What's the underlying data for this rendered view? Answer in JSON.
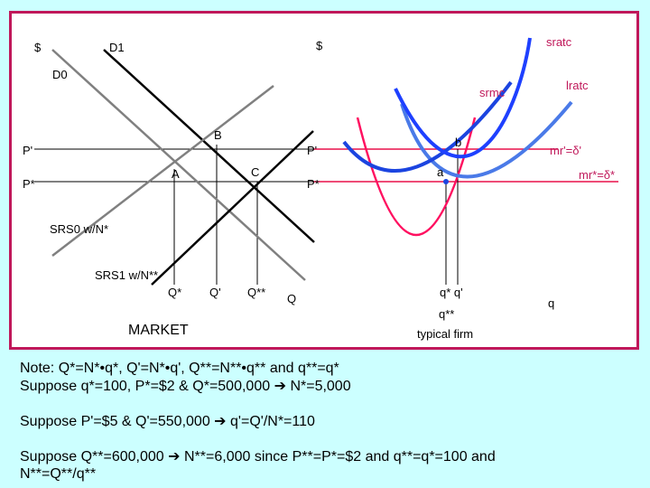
{
  "diagram": {
    "market": {
      "title": "MARKET",
      "y_axis_label": "$",
      "demand_labels": [
        "D1",
        "D0"
      ],
      "supply_labels": [
        "SRS0 w/N*",
        "SRS1 w/N**"
      ],
      "price_labels": [
        "P'",
        "P*"
      ],
      "point_labels": [
        "A",
        "B",
        "C"
      ],
      "quantity_labels": [
        "Q*",
        "Q'",
        "Q**",
        "Q"
      ]
    },
    "firm": {
      "title": "typical firm",
      "y_axis_label": "$",
      "curve_labels": [
        "sratc",
        "lratc",
        "srmc"
      ],
      "price_labels": [
        "P'",
        "P*"
      ],
      "revenue_labels": [
        "mr'=δ'",
        "mr*=δ*"
      ],
      "point_labels": [
        "a",
        "b"
      ],
      "quantity_labels": [
        "q* q'",
        "q**",
        "q"
      ]
    },
    "colors": {
      "frame": "#c0185a",
      "mr_lines": "#e8104a",
      "srmc": "#1b44e0",
      "lratc": "#4a7ae8",
      "sratc": "#1e40ff",
      "short_run_cost": "#ff1060",
      "demand": "#000000",
      "supply": "#808080"
    }
  },
  "notes": {
    "line1": "Note: Q*=N*•q*, Q'=N*•q', Q**=N**•q** and q**=q*",
    "line2_text": "Suppose q*=100, P*=$2 & Q*=500,000",
    "line2_result": "N*=5,000",
    "line3_text": "Suppose P'=$5 & Q'=550,000",
    "line3_result": "q'=Q'/N*=110",
    "line4_text": "Suppose Q**=600,000",
    "line4_result": "N**=6,000 since P**=P*=$2 and q**=q*=100 and",
    "line5": "N**=Q**/q**",
    "arrow_glyph": "➔"
  }
}
